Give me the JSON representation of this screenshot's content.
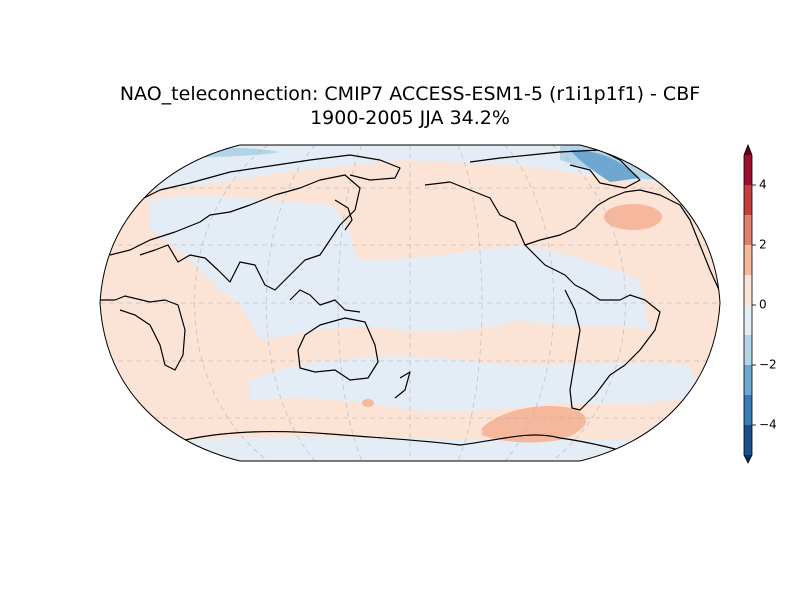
{
  "chart_data": {
    "type": "map",
    "title": "NAO_teleconnection: CMIP7 ACCESS-ESM1-5 (r1i1p1f1) - CBF",
    "subtitle": "1900-2005 JJA 34.2%",
    "colorbar": {
      "levels": [
        -5,
        -4,
        -3,
        -2,
        -1,
        0,
        1,
        2,
        3,
        4,
        5
      ],
      "colors": [
        "#1b4f8a",
        "#3a7cb6",
        "#6ea7cf",
        "#b3d3e7",
        "#e4edf5",
        "#fbe3d6",
        "#f6b89c",
        "#e0806a",
        "#c53e3d",
        "#9b1030"
      ],
      "under_color": "#053061",
      "over_color": "#67001f",
      "ylim": [
        -5,
        5
      ],
      "yticks": [
        {
          "value": -4,
          "label": "−4"
        },
        {
          "value": -2,
          "label": "−2"
        },
        0,
        2,
        4
      ]
    }
  }
}
